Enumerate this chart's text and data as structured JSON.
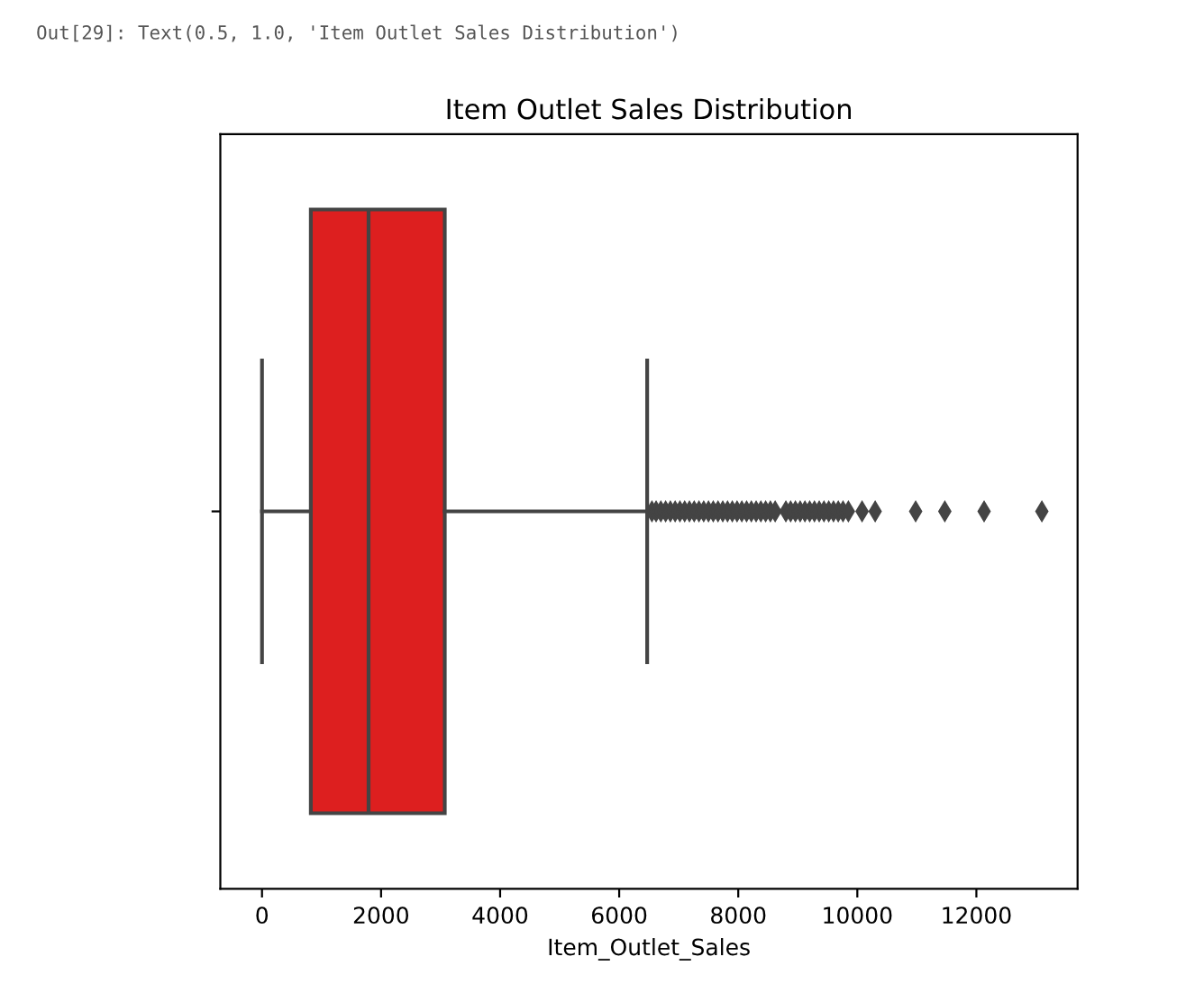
{
  "chart_data": {
    "type": "box",
    "title": "Item Outlet Sales Distribution",
    "xlabel": "Item_Outlet_Sales",
    "annotations": [
      "Out[29]: Text(0.5, 1.0, 'Item Outlet Sales Distribution')"
    ],
    "orientation": "horizontal",
    "categories": [
      null
    ],
    "color": "#dd1f1f",
    "marker": "diamond",
    "xlim": [
      -700,
      13700
    ],
    "xticks": [
      0,
      2000,
      4000,
      6000,
      8000,
      10000,
      12000
    ],
    "boxes": [
      {
        "low": 0,
        "q1": 820,
        "median": 1790,
        "q3": 3070,
        "high": 6470,
        "outliers": [
          6550,
          6620,
          6700,
          6780,
          6860,
          6940,
          7020,
          7100,
          7180,
          7260,
          7340,
          7420,
          7500,
          7580,
          7660,
          7740,
          7820,
          7900,
          7980,
          8060,
          8140,
          8220,
          8300,
          8380,
          8460,
          8540,
          8620,
          8800,
          8880,
          8960,
          9040,
          9120,
          9200,
          9280,
          9360,
          9440,
          9520,
          9600,
          9680,
          9760,
          9850,
          10080,
          10300,
          10980,
          11470,
          12130,
          13100
        ]
      }
    ]
  }
}
